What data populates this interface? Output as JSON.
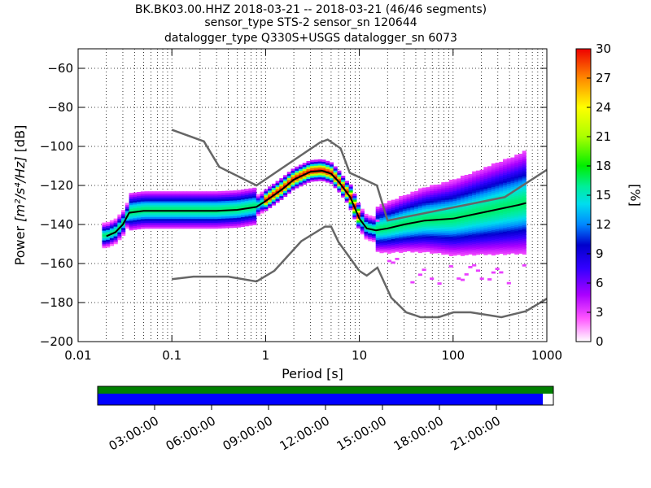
{
  "title_lines": [
    "BK.BK03.00.HHZ   2018-03-21 -- 2018-03-21  (46/46 segments)",
    "sensor_type STS-2 sensor_sn 120644",
    "datalogger_type Q330S+USGS datalogger_sn 6073"
  ],
  "chart_data": {
    "type": "heatmap",
    "xlabel": "Period [s]",
    "ylabel_prefix": "Power ",
    "ylabel_unit": "[m²/s⁴/Hz]",
    "ylabel_suffix": " [dB]",
    "xscale": "log",
    "xlim": [
      0.01,
      1000
    ],
    "ylim": [
      -200,
      -50
    ],
    "x_ticks": [
      0.01,
      0.1,
      1,
      10,
      100,
      1000
    ],
    "x_tick_labels": [
      "0.01",
      "0.1",
      "1",
      "10",
      "100",
      "1000"
    ],
    "y_ticks": [
      -200,
      -180,
      -160,
      -140,
      -120,
      -100,
      -80,
      -60
    ],
    "y_tick_labels": [
      "−200",
      "−180",
      "−160",
      "−140",
      "−120",
      "−100",
      "−80",
      "−60"
    ],
    "grid": "dotted",
    "colorbar": {
      "label": "[%]",
      "range": [
        0,
        30
      ],
      "ticks": [
        0,
        3,
        6,
        9,
        12,
        15,
        18,
        21,
        24,
        27,
        30
      ],
      "tick_labels": [
        "0",
        "3",
        "6",
        "9",
        "12",
        "15",
        "18",
        "21",
        "24",
        "27",
        "30"
      ]
    },
    "nhnm": {
      "x": [
        0.1,
        0.22,
        0.32,
        0.8,
        3.8,
        4.6,
        6.3,
        7.9,
        15.4,
        20,
        354.8,
        1000
      ],
      "y": [
        -91.5,
        -97.4,
        -110.5,
        -120,
        -98,
        -96.5,
        -101,
        -113.5,
        -120,
        -138,
        -126,
        -112
      ]
    },
    "nlnm": {
      "x": [
        0.1,
        0.17,
        0.4,
        0.8,
        1.24,
        2.4,
        4.3,
        5,
        6,
        10,
        12,
        15.6,
        21.9,
        31.6,
        45,
        70,
        101,
        154,
        328,
        600,
        1000
      ],
      "y": [
        -168,
        -166.7,
        -166.7,
        -169.2,
        -163.7,
        -148.6,
        -141.1,
        -141.1,
        -149,
        -163.8,
        -166.2,
        -162.1,
        -177.5,
        -185,
        -187.5,
        -187.5,
        -185,
        -185,
        -187.5,
        -184.4,
        -178
      ]
    },
    "mode_curve": {
      "x": [
        0.02,
        0.025,
        0.03,
        0.035,
        0.05,
        0.08,
        0.1,
        0.15,
        0.2,
        0.3,
        0.5,
        0.8,
        1,
        1.5,
        2,
        3,
        4,
        5,
        6,
        8,
        10,
        12,
        15,
        20,
        30,
        50,
        100,
        200,
        500,
        600
      ],
      "y": [
        -146,
        -144,
        -140,
        -134,
        -133,
        -133,
        -133,
        -133,
        -133,
        -133,
        -132.5,
        -131,
        -128,
        -122,
        -117,
        -113,
        -112.5,
        -114,
        -118,
        -126,
        -137,
        -142,
        -143,
        -142,
        -140,
        -138,
        -137,
        -134,
        -130,
        -129
      ]
    }
  },
  "timeline": {
    "tick_labels": [
      "03:00:00",
      "06:00:00",
      "09:00:00",
      "12:00:00",
      "15:00:00",
      "18:00:00",
      "21:00:00"
    ],
    "tick_hours": [
      3,
      6,
      9,
      12,
      15,
      18,
      21
    ],
    "span_hours": 24,
    "data_coverage_fraction": 0.977,
    "colors": {
      "available": "#008000",
      "used": "#0000ff"
    }
  }
}
